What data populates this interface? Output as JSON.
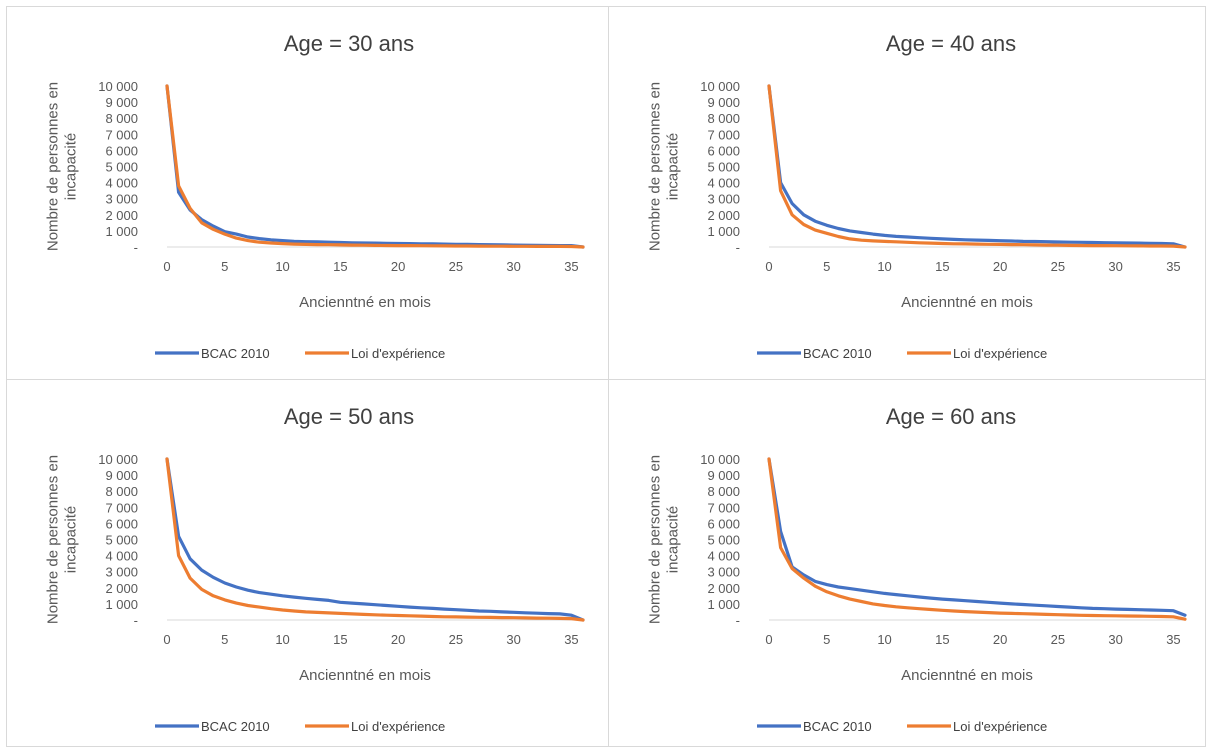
{
  "colors": {
    "bcac": "#4472C4",
    "loi": "#ED7D31",
    "grid": "#d9d9d9",
    "text": "#595959"
  },
  "chart_data": [
    {
      "type": "line",
      "title": "Age = 30 ans",
      "xlabel": "Ancienntné en mois",
      "ylabel": "Nombre de personnes en incapacité",
      "ylim": [
        0,
        10000
      ],
      "xlim": [
        0,
        36
      ],
      "y_tick_labels": [
        "-",
        "1 000",
        "2 000",
        "3 000",
        "4 000",
        "5 000",
        "6 000",
        "7 000",
        "8 000",
        "9 000",
        "10 000"
      ],
      "x_tick_labels": [
        "0",
        "5",
        "10",
        "15",
        "20",
        "25",
        "30",
        "35"
      ],
      "legend": "bottom",
      "x": [
        0,
        1,
        2,
        3,
        4,
        5,
        6,
        7,
        8,
        9,
        10,
        11,
        12,
        13,
        14,
        15,
        16,
        17,
        18,
        19,
        20,
        21,
        22,
        23,
        24,
        25,
        26,
        27,
        28,
        29,
        30,
        31,
        32,
        33,
        34,
        35,
        36
      ],
      "series": [
        {
          "name": "BCAC 2010",
          "values": [
            10000,
            3400,
            2300,
            1700,
            1300,
            950,
            800,
            620,
            520,
            450,
            400,
            350,
            330,
            320,
            300,
            280,
            260,
            250,
            240,
            230,
            220,
            210,
            200,
            190,
            180,
            170,
            160,
            150,
            140,
            130,
            120,
            110,
            100,
            95,
            90,
            85,
            0
          ]
        },
        {
          "name": "Loi d'expérience",
          "values": [
            10000,
            3800,
            2400,
            1500,
            1100,
            800,
            550,
            400,
            300,
            250,
            210,
            180,
            160,
            150,
            140,
            130,
            120,
            110,
            100,
            95,
            90,
            85,
            80,
            75,
            70,
            65,
            60,
            55,
            50,
            48,
            45,
            42,
            40,
            38,
            35,
            32,
            0
          ]
        }
      ]
    },
    {
      "type": "line",
      "title": "Age = 40 ans",
      "xlabel": "Ancienntné en mois",
      "ylabel": "Nombre de personnes en incapacité",
      "ylim": [
        0,
        10000
      ],
      "xlim": [
        0,
        36
      ],
      "y_tick_labels": [
        "-",
        "1 000",
        "2 000",
        "3 000",
        "4 000",
        "5 000",
        "6 000",
        "7 000",
        "8 000",
        "9 000",
        "10 000"
      ],
      "x_tick_labels": [
        "0",
        "5",
        "10",
        "15",
        "20",
        "25",
        "30",
        "35"
      ],
      "legend": "bottom",
      "x": [
        0,
        1,
        2,
        3,
        4,
        5,
        6,
        7,
        8,
        9,
        10,
        11,
        12,
        13,
        14,
        15,
        16,
        17,
        18,
        19,
        20,
        21,
        22,
        23,
        24,
        25,
        26,
        27,
        28,
        29,
        30,
        31,
        32,
        33,
        34,
        35,
        36
      ],
      "series": [
        {
          "name": "BCAC 2010",
          "values": [
            10000,
            4000,
            2700,
            2000,
            1600,
            1350,
            1150,
            1000,
            900,
            800,
            720,
            660,
            620,
            580,
            540,
            500,
            470,
            450,
            430,
            410,
            390,
            370,
            350,
            340,
            330,
            310,
            300,
            290,
            280,
            270,
            260,
            250,
            240,
            230,
            220,
            200,
            0
          ]
        },
        {
          "name": "Loi d'expérience",
          "values": [
            10000,
            3500,
            2000,
            1400,
            1050,
            850,
            650,
            500,
            420,
            380,
            350,
            320,
            290,
            260,
            240,
            220,
            200,
            190,
            180,
            170,
            160,
            150,
            140,
            130,
            120,
            110,
            100,
            95,
            90,
            85,
            80,
            75,
            70,
            65,
            60,
            55,
            0
          ]
        }
      ]
    },
    {
      "type": "line",
      "title": "Age = 50 ans",
      "xlabel": "Ancienntné en mois",
      "ylabel": "Nombre de personnes en incapacité",
      "ylim": [
        0,
        10000
      ],
      "xlim": [
        0,
        36
      ],
      "y_tick_labels": [
        "-",
        "1 000",
        "2 000",
        "3 000",
        "4 000",
        "5 000",
        "6 000",
        "7 000",
        "8 000",
        "9 000",
        "10 000"
      ],
      "x_tick_labels": [
        "0",
        "5",
        "10",
        "15",
        "20",
        "25",
        "30",
        "35"
      ],
      "legend": "bottom",
      "x": [
        0,
        1,
        2,
        3,
        4,
        5,
        6,
        7,
        8,
        9,
        10,
        11,
        12,
        13,
        14,
        15,
        16,
        17,
        18,
        19,
        20,
        21,
        22,
        23,
        24,
        25,
        26,
        27,
        28,
        29,
        30,
        31,
        32,
        33,
        34,
        35,
        36
      ],
      "series": [
        {
          "name": "BCAC 2010",
          "values": [
            10000,
            5200,
            3800,
            3100,
            2650,
            2300,
            2050,
            1850,
            1700,
            1600,
            1500,
            1420,
            1350,
            1280,
            1220,
            1100,
            1050,
            1000,
            950,
            900,
            850,
            800,
            760,
            720,
            680,
            640,
            600,
            560,
            540,
            500,
            480,
            450,
            420,
            400,
            380,
            300,
            0
          ]
        },
        {
          "name": "Loi d'expérience",
          "values": [
            10000,
            4000,
            2600,
            1900,
            1500,
            1250,
            1050,
            900,
            800,
            700,
            620,
            560,
            500,
            470,
            440,
            410,
            380,
            350,
            320,
            300,
            280,
            260,
            240,
            220,
            200,
            190,
            180,
            170,
            160,
            150,
            140,
            130,
            120,
            110,
            100,
            90,
            0
          ]
        }
      ]
    },
    {
      "type": "line",
      "title": "Age = 60 ans",
      "xlabel": "Ancienntné en mois",
      "ylabel": "Nombre de personnes en incapacité",
      "ylim": [
        0,
        10000
      ],
      "xlim": [
        0,
        36
      ],
      "y_tick_labels": [
        "-",
        "1 000",
        "2 000",
        "3 000",
        "4 000",
        "5 000",
        "6 000",
        "7 000",
        "8 000",
        "9 000",
        "10 000"
      ],
      "x_tick_labels": [
        "0",
        "5",
        "10",
        "15",
        "20",
        "25",
        "30",
        "35"
      ],
      "legend": "bottom",
      "x": [
        0,
        1,
        2,
        3,
        4,
        5,
        6,
        7,
        8,
        9,
        10,
        11,
        12,
        13,
        14,
        15,
        16,
        17,
        18,
        19,
        20,
        21,
        22,
        23,
        24,
        25,
        26,
        27,
        28,
        29,
        30,
        31,
        32,
        33,
        34,
        35,
        36
      ],
      "series": [
        {
          "name": "BCAC 2010",
          "values": [
            10000,
            5500,
            3300,
            2800,
            2400,
            2200,
            2050,
            1950,
            1850,
            1750,
            1650,
            1580,
            1500,
            1430,
            1360,
            1300,
            1250,
            1200,
            1150,
            1100,
            1050,
            1000,
            960,
            920,
            880,
            840,
            800,
            760,
            720,
            700,
            680,
            660,
            640,
            620,
            600,
            580,
            300
          ]
        },
        {
          "name": "Loi d'expérience",
          "values": [
            10000,
            4500,
            3200,
            2600,
            2100,
            1750,
            1500,
            1300,
            1150,
            1000,
            900,
            820,
            760,
            700,
            650,
            600,
            560,
            520,
            490,
            460,
            430,
            410,
            390,
            370,
            350,
            330,
            310,
            290,
            280,
            270,
            260,
            250,
            240,
            230,
            220,
            200,
            50
          ]
        }
      ]
    }
  ]
}
